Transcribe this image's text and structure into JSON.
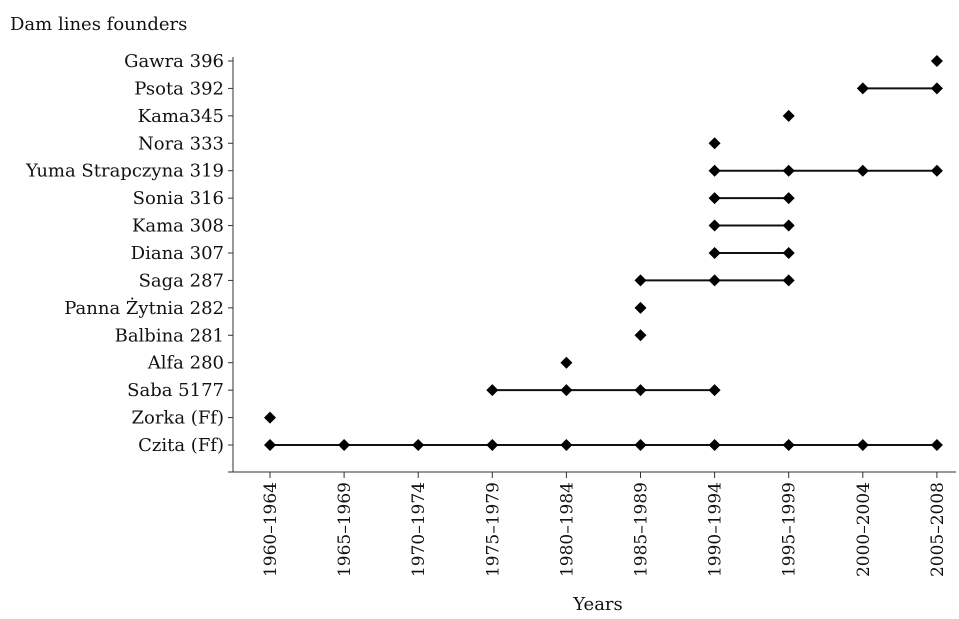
{
  "chart_data": {
    "type": "scatter",
    "ylabel": "Dam lines founders",
    "xlabel": "Years",
    "categories": [
      "1960–1964",
      "1965–1969",
      "1970–1974",
      "1975–1979",
      "1980–1984",
      "1985–1989",
      "1990–1994",
      "1995–1999",
      "2000–2004",
      "2005–2008"
    ],
    "lines": [
      "Czita (Ff)",
      "Zorka (Ff)",
      "Saba 5177",
      "Alfa 280",
      "Balbina 281",
      "Panna Żytnia 282",
      "Saga 287",
      "Diana 307",
      "Kama 308",
      "Sonia 316",
      "Yuma Strapczyna 319",
      "Nora 333",
      "Kama345",
      "Psota 392",
      "Gawra 396"
    ],
    "series": [
      {
        "line": "Czita (Ff)",
        "points": [
          "1960–1964",
          "1965–1969",
          "1970–1974",
          "1975–1979",
          "1980–1984",
          "1985–1989",
          "1990–1994",
          "1995–1999",
          "2000–2004",
          "2005–2008"
        ]
      },
      {
        "line": "Zorka (Ff)",
        "points": [
          "1960–1964"
        ]
      },
      {
        "line": "Saba 5177",
        "points": [
          "1975–1979",
          "1980–1984",
          "1985–1989",
          "1990–1994"
        ]
      },
      {
        "line": "Alfa 280",
        "points": [
          "1980–1984"
        ]
      },
      {
        "line": "Balbina 281",
        "points": [
          "1985–1989"
        ]
      },
      {
        "line": "Panna Żytnia 282",
        "points": [
          "1985–1989"
        ]
      },
      {
        "line": "Saga 287",
        "points": [
          "1985–1989",
          "1990–1994",
          "1995–1999"
        ]
      },
      {
        "line": "Diana 307",
        "points": [
          "1990–1994",
          "1995–1999"
        ]
      },
      {
        "line": "Kama 308",
        "points": [
          "1990–1994",
          "1995–1999"
        ]
      },
      {
        "line": "Sonia 316",
        "points": [
          "1990–1994",
          "1995–1999"
        ]
      },
      {
        "line": "Yuma Strapczyna 319",
        "points": [
          "1990–1994",
          "1995–1999",
          "2000–2004",
          "2005–2008"
        ]
      },
      {
        "line": "Nora 333",
        "points": [
          "1990–1994"
        ]
      },
      {
        "line": "Kama345",
        "points": [
          "1995–1999"
        ]
      },
      {
        "line": "Psota 392",
        "points": [
          "2000–2004",
          "2005–2008"
        ]
      },
      {
        "line": "Gawra 396",
        "points": [
          "2005–2008"
        ]
      }
    ],
    "grid": false,
    "legend": "none"
  }
}
